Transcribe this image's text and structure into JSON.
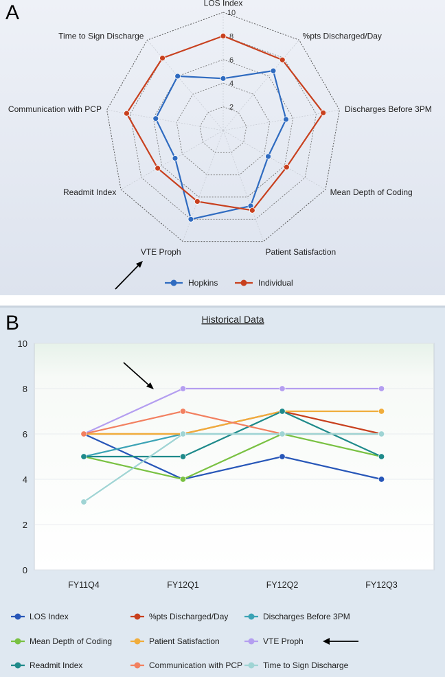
{
  "panel_labels": {
    "a": "A",
    "b": "B"
  },
  "chart_data": [
    {
      "type": "radar",
      "axes": [
        "LOS Index",
        "%pts Discharged/Day",
        "Discharges Before 3PM",
        "Mean Depth of Coding",
        "Patient Satisfaction",
        "VTE Proph",
        "Readmit Index",
        "Communication with PCP",
        "Time to Sign Discharge"
      ],
      "rlim": [
        0,
        10
      ],
      "ticks": [
        2,
        4,
        6,
        8,
        10
      ],
      "series": [
        {
          "name": "Hopkins",
          "color": "#2f6bc0",
          "values": [
            4.4,
            6.6,
            5.4,
            4.4,
            6.8,
            8.0,
            4.7,
            5.8,
            6.0
          ]
        },
        {
          "name": "Individual",
          "color": "#c8401e",
          "values": [
            8.0,
            7.8,
            8.6,
            6.2,
            7.2,
            6.4,
            6.4,
            8.3,
            8.0
          ]
        }
      ],
      "legend": "bottom"
    },
    {
      "type": "line",
      "title": "Historical Data",
      "categories": [
        "FY11Q4",
        "FY12Q1",
        "FY12Q2",
        "FY12Q3"
      ],
      "ylim": [
        0,
        10
      ],
      "yticks": [
        0,
        2,
        4,
        6,
        8,
        10
      ],
      "series": [
        {
          "name": "LOS Index",
          "color": "#2756b8",
          "values": [
            6,
            4,
            5,
            4
          ]
        },
        {
          "name": "%pts Discharged/Day",
          "color": "#c8401e",
          "values": [
            6,
            6,
            7,
            6
          ]
        },
        {
          "name": "Discharges Before 3PM",
          "color": "#3ba3b5",
          "values": [
            5,
            6,
            6,
            6
          ]
        },
        {
          "name": "Mean Depth of Coding",
          "color": "#79c142",
          "values": [
            5,
            4,
            6,
            5
          ]
        },
        {
          "name": "Patient Satisfaction",
          "color": "#f0ad3c",
          "values": [
            6,
            6,
            7,
            7
          ]
        },
        {
          "name": "VTE Proph",
          "color": "#b49ef0",
          "values": [
            6,
            8,
            8,
            8
          ]
        },
        {
          "name": "Readmit Index",
          "color": "#1e8a8a",
          "values": [
            5,
            5,
            7,
            5
          ]
        },
        {
          "name": "Communication with PCP",
          "color": "#f28060",
          "values": [
            6,
            7,
            6,
            6
          ]
        },
        {
          "name": "Time to Sign Discharge",
          "color": "#9fd4d4",
          "values": [
            3,
            6,
            6,
            6
          ]
        }
      ],
      "legend": "bottom"
    }
  ]
}
